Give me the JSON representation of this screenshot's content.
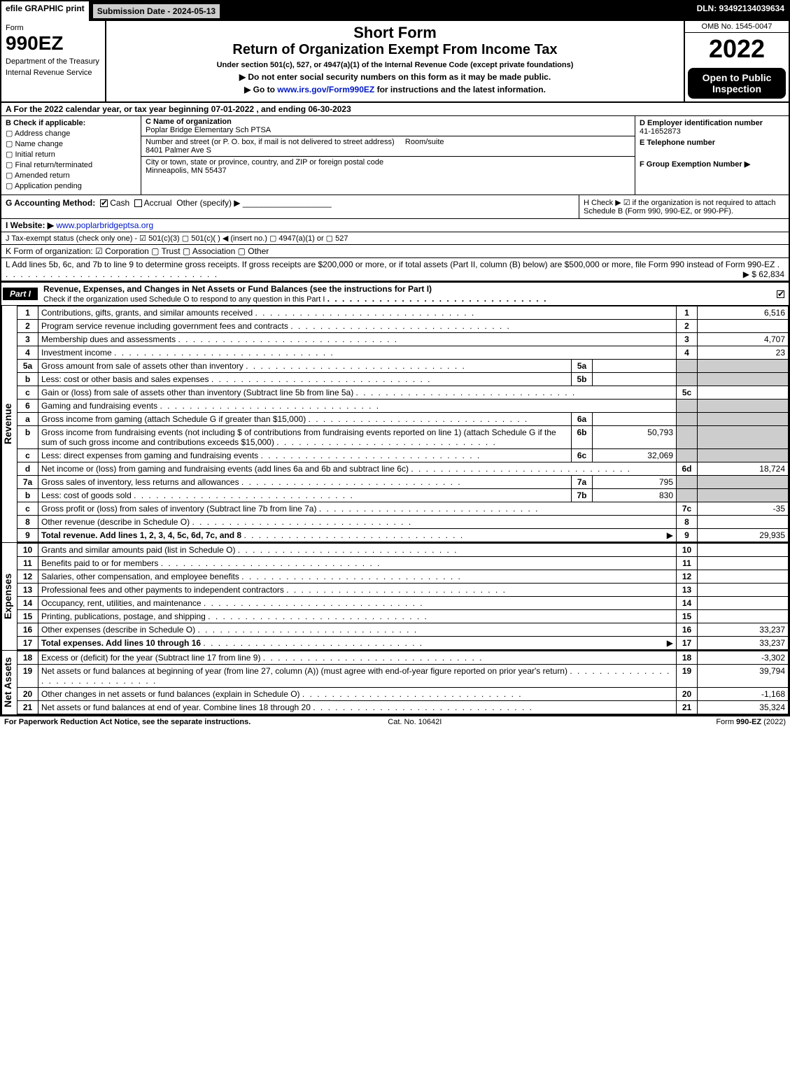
{
  "topbar": {
    "efile": "efile GRAPHIC print",
    "submission": "Submission Date - 2024-05-13",
    "dln": "DLN: 93492134039634"
  },
  "header": {
    "form_label": "Form",
    "form_number": "990EZ",
    "dept": "Department of the Treasury",
    "irs": "Internal Revenue Service",
    "short_form": "Short Form",
    "return_title": "Return of Organization Exempt From Income Tax",
    "under": "Under section 501(c), 527, or 4947(a)(1) of the Internal Revenue Code (except private foundations)",
    "note_ssn": "▶ Do not enter social security numbers on this form as it may be made public.",
    "note_goto": "▶ Go to www.irs.gov/Form990EZ for instructions and the latest information.",
    "omb": "OMB No. 1545-0047",
    "year": "2022",
    "open": "Open to Public Inspection"
  },
  "lineA": "A  For the 2022 calendar year, or tax year beginning 07-01-2022 , and ending 06-30-2023",
  "sectionB": {
    "title": "B  Check if applicable:",
    "items": [
      "Address change",
      "Name change",
      "Initial return",
      "Final return/terminated",
      "Amended return",
      "Application pending"
    ]
  },
  "sectionC": {
    "name_label": "C Name of organization",
    "name": "Poplar Bridge Elementary Sch PTSA",
    "street_label": "Number and street (or P. O. box, if mail is not delivered to street address)",
    "room_label": "Room/suite",
    "street": "8401 Palmer Ave S",
    "city_label": "City or town, state or province, country, and ZIP or foreign postal code",
    "city": "Minneapolis, MN  55437"
  },
  "sectionD": {
    "ein_label": "D Employer identification number",
    "ein": "41-1652873",
    "tel_label": "E Telephone number",
    "group_label": "F Group Exemption Number   ▶"
  },
  "lineG": {
    "label": "G Accounting Method:",
    "cash": "Cash",
    "accrual": "Accrual",
    "other": "Other (specify) ▶"
  },
  "lineH": "H  Check ▶  ☑  if the organization is not required to attach Schedule B (Form 990, 990-EZ, or 990-PF).",
  "lineI": {
    "label": "I Website: ▶",
    "url": "www.poplarbridgeptsa.org"
  },
  "lineJ": "J Tax-exempt status (check only one) - ☑ 501(c)(3)  ▢ 501(c)(   ) ◀ (insert no.)  ▢ 4947(a)(1) or  ▢ 527",
  "lineK": "K Form of organization:   ☑ Corporation   ▢ Trust   ▢ Association   ▢ Other",
  "lineL": {
    "text": "L Add lines 5b, 6c, and 7b to line 9 to determine gross receipts. If gross receipts are $200,000 or more, or if total assets (Part II, column (B) below) are $500,000 or more, file Form 990 instead of Form 990-EZ",
    "amount": "▶ $ 62,834"
  },
  "part1": {
    "tag": "Part I",
    "title": "Revenue, Expenses, and Changes in Net Assets or Fund Balances (see the instructions for Part I)",
    "sub": "Check if the organization used Schedule O to respond to any question in this Part I"
  },
  "revenue": {
    "label": "Revenue",
    "rows": [
      {
        "ln": "1",
        "desc": "Contributions, gifts, grants, and similar amounts received",
        "code": "1",
        "amt": "6,516"
      },
      {
        "ln": "2",
        "desc": "Program service revenue including government fees and contracts",
        "code": "2",
        "amt": ""
      },
      {
        "ln": "3",
        "desc": "Membership dues and assessments",
        "code": "3",
        "amt": "4,707"
      },
      {
        "ln": "4",
        "desc": "Investment income",
        "code": "4",
        "amt": "23"
      },
      {
        "ln": "5a",
        "desc": "Gross amount from sale of assets other than inventory",
        "box": "5a",
        "innerval": "",
        "code": "",
        "amt": "",
        "shade": true
      },
      {
        "ln": "b",
        "desc": "Less: cost or other basis and sales expenses",
        "box": "5b",
        "innerval": "",
        "code": "",
        "amt": "",
        "shade": true
      },
      {
        "ln": "c",
        "desc": "Gain or (loss) from sale of assets other than inventory (Subtract line 5b from line 5a)",
        "code": "5c",
        "amt": ""
      },
      {
        "ln": "6",
        "desc": "Gaming and fundraising events",
        "code": "",
        "amt": "",
        "shade": true,
        "noright": true
      },
      {
        "ln": "a",
        "desc": "Gross income from gaming (attach Schedule G if greater than $15,000)",
        "box": "6a",
        "innerval": "",
        "code": "",
        "amt": "",
        "shade": true
      },
      {
        "ln": "b",
        "desc": "Gross income from fundraising events (not including $                          of contributions from fundraising events reported on line 1) (attach Schedule G if the sum of such gross income and contributions exceeds $15,000)",
        "box": "6b",
        "innerval": "50,793",
        "code": "",
        "amt": "",
        "shade": true
      },
      {
        "ln": "c",
        "desc": "Less: direct expenses from gaming and fundraising events",
        "box": "6c",
        "innerval": "32,069",
        "code": "",
        "amt": "",
        "shade": true
      },
      {
        "ln": "d",
        "desc": "Net income or (loss) from gaming and fundraising events (add lines 6a and 6b and subtract line 6c)",
        "code": "6d",
        "amt": "18,724"
      },
      {
        "ln": "7a",
        "desc": "Gross sales of inventory, less returns and allowances",
        "box": "7a",
        "innerval": "795",
        "code": "",
        "amt": "",
        "shade": true
      },
      {
        "ln": "b",
        "desc": "Less: cost of goods sold",
        "box": "7b",
        "innerval": "830",
        "code": "",
        "amt": "",
        "shade": true
      },
      {
        "ln": "c",
        "desc": "Gross profit or (loss) from sales of inventory (Subtract line 7b from line 7a)",
        "code": "7c",
        "amt": "-35"
      },
      {
        "ln": "8",
        "desc": "Other revenue (describe in Schedule O)",
        "code": "8",
        "amt": ""
      },
      {
        "ln": "9",
        "desc": "Total revenue. Add lines 1, 2, 3, 4, 5c, 6d, 7c, and 8",
        "code": "9",
        "amt": "29,935",
        "bold": true,
        "arrow": true
      }
    ]
  },
  "expenses": {
    "label": "Expenses",
    "rows": [
      {
        "ln": "10",
        "desc": "Grants and similar amounts paid (list in Schedule O)",
        "code": "10",
        "amt": ""
      },
      {
        "ln": "11",
        "desc": "Benefits paid to or for members",
        "code": "11",
        "amt": ""
      },
      {
        "ln": "12",
        "desc": "Salaries, other compensation, and employee benefits",
        "code": "12",
        "amt": ""
      },
      {
        "ln": "13",
        "desc": "Professional fees and other payments to independent contractors",
        "code": "13",
        "amt": ""
      },
      {
        "ln": "14",
        "desc": "Occupancy, rent, utilities, and maintenance",
        "code": "14",
        "amt": ""
      },
      {
        "ln": "15",
        "desc": "Printing, publications, postage, and shipping",
        "code": "15",
        "amt": ""
      },
      {
        "ln": "16",
        "desc": "Other expenses (describe in Schedule O)",
        "code": "16",
        "amt": "33,237"
      },
      {
        "ln": "17",
        "desc": "Total expenses. Add lines 10 through 16",
        "code": "17",
        "amt": "33,237",
        "bold": true,
        "arrow": true
      }
    ]
  },
  "netassets": {
    "label": "Net Assets",
    "rows": [
      {
        "ln": "18",
        "desc": "Excess or (deficit) for the year (Subtract line 17 from line 9)",
        "code": "18",
        "amt": "-3,302"
      },
      {
        "ln": "19",
        "desc": "Net assets or fund balances at beginning of year (from line 27, column (A)) (must agree with end-of-year figure reported on prior year's return)",
        "code": "19",
        "amt": "39,794"
      },
      {
        "ln": "20",
        "desc": "Other changes in net assets or fund balances (explain in Schedule O)",
        "code": "20",
        "amt": "-1,168"
      },
      {
        "ln": "21",
        "desc": "Net assets or fund balances at end of year. Combine lines 18 through 20",
        "code": "21",
        "amt": "35,324"
      }
    ]
  },
  "footer": {
    "left": "For Paperwork Reduction Act Notice, see the separate instructions.",
    "mid": "Cat. No. 10642I",
    "right": "Form 990-EZ (2022)"
  },
  "colors": {
    "black": "#000000",
    "white": "#ffffff",
    "shade": "#cdcdcd",
    "link": "#0018c4"
  }
}
